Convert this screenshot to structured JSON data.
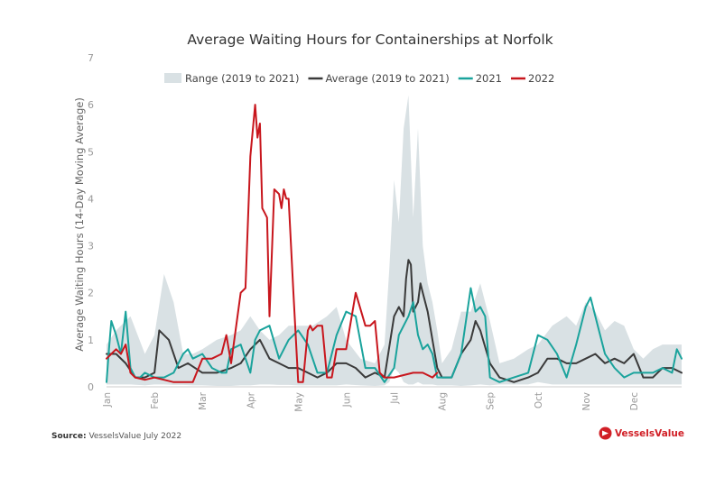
{
  "chart_data": {
    "type": "line",
    "title": "Average Waiting Hours for Containerships at Norfolk",
    "xlabel": "",
    "ylabel": "Average Waiting Hours (14-Day Moving Average)",
    "ylim": [
      0,
      7
    ],
    "yticks": [
      "0",
      "1",
      "2",
      "3",
      "4",
      "5",
      "6",
      "7"
    ],
    "month_labels": [
      "Jan",
      "Feb",
      "Mar",
      "Apr",
      "May",
      "Jun",
      "Jul",
      "Aug",
      "Sep",
      "Oct",
      "Nov",
      "Dec"
    ],
    "legend_position": "top",
    "legend": [
      "Range (2019 to 2021)",
      "Average (2019 to 2021)",
      "2021",
      "2022"
    ],
    "x_unit": "month (1 = Jan 1, 13 = Dec 31)",
    "range_band": {
      "name": "Range (2019 to 2021)",
      "color": "#d9e1e4",
      "x": [
        1.0,
        1.2,
        1.5,
        1.8,
        2.0,
        2.2,
        2.4,
        2.6,
        2.8,
        3.0,
        3.3,
        3.6,
        3.8,
        4.0,
        4.2,
        4.4,
        4.6,
        4.8,
        5.0,
        5.3,
        5.6,
        5.8,
        6.0,
        6.3,
        6.6,
        6.8,
        6.9,
        7.0,
        7.1,
        7.2,
        7.3,
        7.4,
        7.5,
        7.6,
        7.7,
        7.8,
        7.9,
        8.0,
        8.2,
        8.4,
        8.6,
        8.8,
        9.0,
        9.2,
        9.5,
        9.8,
        10.0,
        10.3,
        10.6,
        10.8,
        11.0,
        11.2,
        11.4,
        11.6,
        11.8,
        12.0,
        12.2,
        12.4,
        12.6,
        12.8,
        13.0
      ],
      "low": [
        0.05,
        0.05,
        0.05,
        0.03,
        0.05,
        0.05,
        0.04,
        0.04,
        0.03,
        0.03,
        0.02,
        0.02,
        0.03,
        0.03,
        0.05,
        0.05,
        0.04,
        0.04,
        0.03,
        0.03,
        0.03,
        0.03,
        0.05,
        0.03,
        0.02,
        0.03,
        0.1,
        0.4,
        0.3,
        0.1,
        0.05,
        0.05,
        0.1,
        0.05,
        0.05,
        0.05,
        0.03,
        0.03,
        0.03,
        0.02,
        0.03,
        0.05,
        0.03,
        0.05,
        0.05,
        0.05,
        0.1,
        0.05,
        0.05,
        0.05,
        0.05,
        0.05,
        0.05,
        0.05,
        0.05,
        0.05,
        0.05,
        0.05,
        0.05,
        0.05,
        0.05
      ],
      "high": [
        0.9,
        1.2,
        1.5,
        0.7,
        1.1,
        2.4,
        1.8,
        0.7,
        0.7,
        0.8,
        1.0,
        1.1,
        1.2,
        1.5,
        1.2,
        1.0,
        1.1,
        1.3,
        1.3,
        1.3,
        1.5,
        1.7,
        1.0,
        0.6,
        0.5,
        0.9,
        2.5,
        4.4,
        3.5,
        5.5,
        6.2,
        3.6,
        5.5,
        3.0,
        2.2,
        1.8,
        1.2,
        0.5,
        0.8,
        1.6,
        1.6,
        2.2,
        1.4,
        0.5,
        0.6,
        0.8,
        0.9,
        1.3,
        1.5,
        1.3,
        1.8,
        1.6,
        1.2,
        1.4,
        1.3,
        0.8,
        0.6,
        0.8,
        0.9,
        0.9,
        0.9
      ]
    },
    "series": [
      {
        "name": "Average (2019 to 2021)",
        "color": "#3a3a3a",
        "x": [
          1.0,
          1.2,
          1.4,
          1.6,
          1.8,
          2.0,
          2.1,
          2.3,
          2.5,
          2.7,
          3.0,
          3.3,
          3.6,
          3.8,
          4.0,
          4.2,
          4.4,
          4.6,
          4.8,
          5.0,
          5.2,
          5.4,
          5.6,
          5.8,
          6.0,
          6.2,
          6.4,
          6.6,
          6.8,
          7.0,
          7.1,
          7.2,
          7.25,
          7.3,
          7.35,
          7.4,
          7.5,
          7.55,
          7.6,
          7.7,
          7.8,
          7.9,
          8.0,
          8.2,
          8.4,
          8.6,
          8.7,
          8.8,
          9.0,
          9.2,
          9.5,
          9.8,
          10.0,
          10.2,
          10.4,
          10.6,
          10.8,
          11.0,
          11.2,
          11.4,
          11.6,
          11.8,
          12.0,
          12.2,
          12.4,
          12.6,
          12.8,
          13.0
        ],
        "values": [
          0.7,
          0.7,
          0.5,
          0.2,
          0.2,
          0.3,
          1.2,
          1.0,
          0.4,
          0.5,
          0.3,
          0.3,
          0.4,
          0.5,
          0.8,
          1.0,
          0.6,
          0.5,
          0.4,
          0.4,
          0.3,
          0.2,
          0.3,
          0.5,
          0.5,
          0.4,
          0.2,
          0.3,
          0.2,
          1.5,
          1.7,
          1.5,
          2.3,
          2.7,
          2.6,
          1.6,
          1.8,
          2.2,
          2.0,
          1.6,
          1.0,
          0.4,
          0.2,
          0.2,
          0.7,
          1.0,
          1.4,
          1.2,
          0.5,
          0.2,
          0.1,
          0.2,
          0.3,
          0.6,
          0.6,
          0.5,
          0.5,
          0.6,
          0.7,
          0.5,
          0.6,
          0.5,
          0.7,
          0.2,
          0.2,
          0.4,
          0.4,
          0.3
        ]
      },
      {
        "name": "2021",
        "color": "#1aa39c",
        "x": [
          1.0,
          1.05,
          1.1,
          1.2,
          1.3,
          1.4,
          1.5,
          1.6,
          1.7,
          1.8,
          2.0,
          2.2,
          2.4,
          2.6,
          2.7,
          2.8,
          3.0,
          3.2,
          3.4,
          3.5,
          3.6,
          3.8,
          4.0,
          4.1,
          4.2,
          4.4,
          4.6,
          4.8,
          5.0,
          5.2,
          5.4,
          5.6,
          5.8,
          6.0,
          6.2,
          6.4,
          6.6,
          6.8,
          7.0,
          7.1,
          7.2,
          7.3,
          7.4,
          7.5,
          7.6,
          7.7,
          7.8,
          7.9,
          8.0,
          8.2,
          8.4,
          8.6,
          8.7,
          8.8,
          8.9,
          9.0,
          9.2,
          9.5,
          9.8,
          10.0,
          10.2,
          10.4,
          10.6,
          10.8,
          11.0,
          11.1,
          11.2,
          11.4,
          11.6,
          11.8,
          12.0,
          12.2,
          12.4,
          12.6,
          12.8,
          12.9,
          13.0
        ],
        "values": [
          0.1,
          0.8,
          1.4,
          1.1,
          0.7,
          1.6,
          0.4,
          0.2,
          0.2,
          0.3,
          0.2,
          0.2,
          0.3,
          0.7,
          0.8,
          0.6,
          0.7,
          0.4,
          0.3,
          0.3,
          0.8,
          0.9,
          0.3,
          1.0,
          1.2,
          1.3,
          0.6,
          1.0,
          1.2,
          0.9,
          0.3,
          0.3,
          1.1,
          1.6,
          1.5,
          0.4,
          0.4,
          0.1,
          0.4,
          1.1,
          1.3,
          1.5,
          1.8,
          1.1,
          0.8,
          0.9,
          0.7,
          0.2,
          0.2,
          0.2,
          0.7,
          2.1,
          1.6,
          1.7,
          1.5,
          0.2,
          0.1,
          0.2,
          0.3,
          1.1,
          1.0,
          0.7,
          0.2,
          0.9,
          1.7,
          1.9,
          1.5,
          0.7,
          0.4,
          0.2,
          0.3,
          0.3,
          0.3,
          0.4,
          0.3,
          0.8,
          0.6
        ]
      },
      {
        "name": "2022",
        "color": "#c8161d",
        "x": [
          1.0,
          1.1,
          1.2,
          1.3,
          1.4,
          1.5,
          1.6,
          1.8,
          2.0,
          2.2,
          2.4,
          2.6,
          2.8,
          3.0,
          3.2,
          3.4,
          3.5,
          3.6,
          3.8,
          3.9,
          4.0,
          4.1,
          4.15,
          4.2,
          4.25,
          4.3,
          4.35,
          4.4,
          4.5,
          4.6,
          4.65,
          4.7,
          4.75,
          4.8,
          4.9,
          5.0,
          5.1,
          5.2,
          5.25,
          5.3,
          5.4,
          5.5,
          5.6,
          5.7,
          5.8,
          6.0,
          6.2,
          6.4,
          6.5,
          6.6,
          6.7,
          6.8,
          7.0,
          7.2,
          7.4,
          7.6,
          7.8,
          7.9
        ],
        "values": [
          0.6,
          0.7,
          0.8,
          0.7,
          0.9,
          0.3,
          0.2,
          0.15,
          0.2,
          0.15,
          0.1,
          0.1,
          0.1,
          0.6,
          0.6,
          0.7,
          1.1,
          0.5,
          2.0,
          2.1,
          4.9,
          6.0,
          5.3,
          5.6,
          3.8,
          3.7,
          3.6,
          1.5,
          4.2,
          4.1,
          3.8,
          4.2,
          4.0,
          4.0,
          2.0,
          0.1,
          0.1,
          1.2,
          1.3,
          1.2,
          1.3,
          1.3,
          0.2,
          0.2,
          0.8,
          0.8,
          2.0,
          1.3,
          1.3,
          1.4,
          0.3,
          0.2,
          0.2,
          0.25,
          0.3,
          0.3,
          0.2,
          0.3
        ]
      }
    ]
  },
  "footer": {
    "source_label": "Source:",
    "source_text": "VesselsValue July 2022",
    "brand": "VesselsValue"
  }
}
